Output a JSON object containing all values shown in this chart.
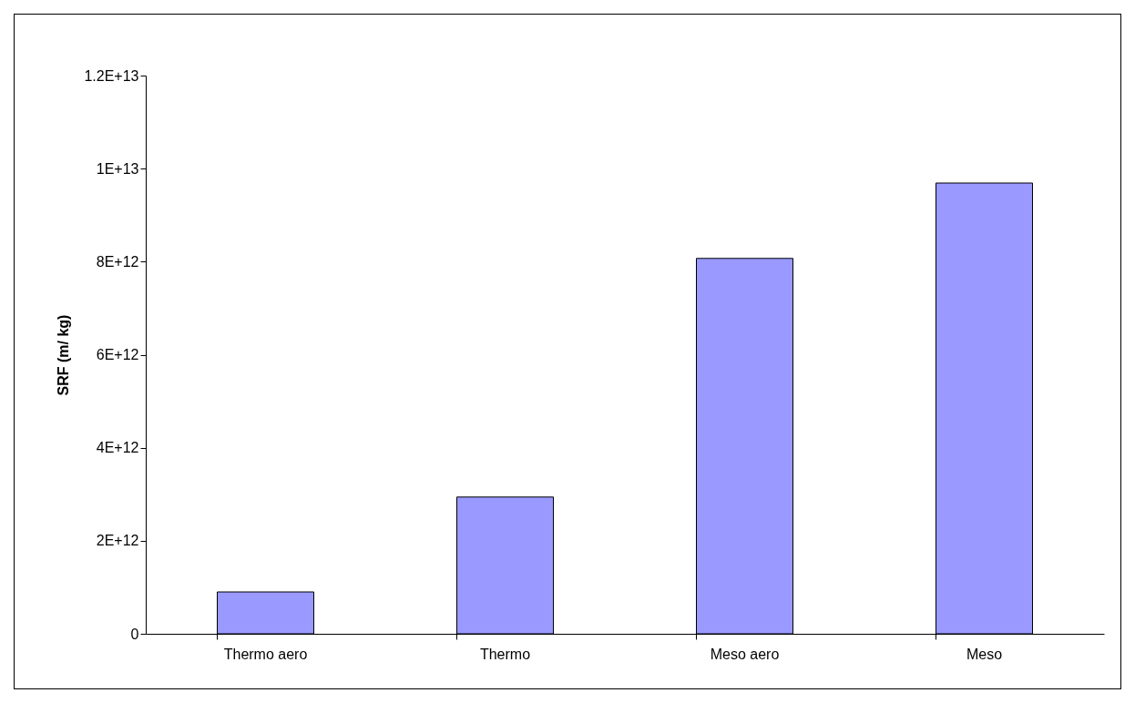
{
  "chart_data": {
    "type": "bar",
    "ylabel": "SRF (m/ kg)",
    "categories": [
      "Thermo aero",
      "Thermo",
      "Meso aero",
      "Meso"
    ],
    "values": [
      900000000000.0,
      2940000000000.0,
      8070000000000.0,
      9690000000000.0
    ],
    "color": "#9999ff",
    "ylim": [
      0,
      12000000000000.0
    ],
    "yticks": [
      0,
      {
        "value": 2000000000000.0,
        "label": "2E+12"
      },
      {
        "value": 4000000000000.0,
        "label": "4E+12"
      },
      {
        "value": 6000000000000.0,
        "label": "6E+12"
      },
      {
        "value": 8000000000000.0,
        "label": "8E+12"
      },
      {
        "value": 10000000000000.0,
        "label": "1E+13"
      },
      {
        "value": 12000000000000.0,
        "label": "1.2E+13"
      }
    ],
    "grid": false
  }
}
